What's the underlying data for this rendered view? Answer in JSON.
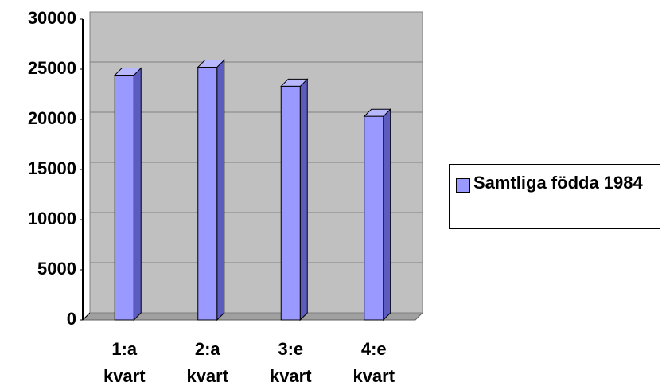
{
  "chart_data": {
    "type": "bar3d",
    "categories": [
      "1:a kvart",
      "2:a kvart",
      "3:e kvart",
      "4:e kvart"
    ],
    "series": [
      {
        "name": "Samtliga födda 1984",
        "color": "#9999ff",
        "values": [
          24400,
          25200,
          23300,
          20300
        ]
      }
    ],
    "ylim": [
      0,
      30000
    ],
    "yticks": [
      0,
      5000,
      10000,
      15000,
      20000,
      25000,
      30000
    ],
    "grid": true,
    "legend": "right"
  }
}
